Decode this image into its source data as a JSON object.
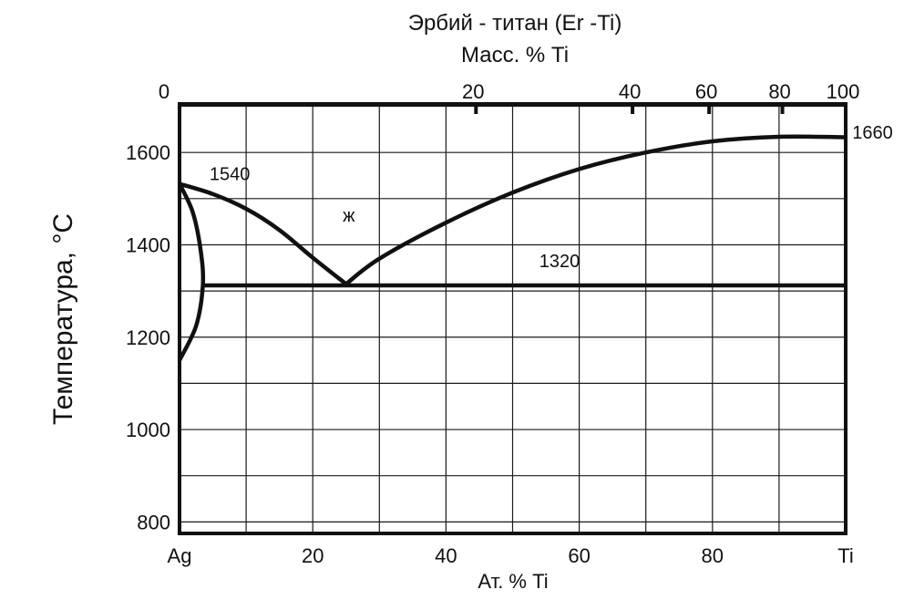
{
  "chart_data": {
    "type": "line",
    "title": "Эрбий - титан (Er -Ti)",
    "subtitle": "Масс. % Ti",
    "xlabel": "Ат. % Ti",
    "ylabel": "Температура,   °С",
    "xlim": [
      0,
      100
    ],
    "ylim": [
      775,
      1705
    ],
    "grid": true,
    "x_tick_labels": [
      {
        "value": 0,
        "label": "Ag"
      },
      {
        "value": 20,
        "label": "20"
      },
      {
        "value": 40,
        "label": "40"
      },
      {
        "value": 60,
        "label": "60"
      },
      {
        "value": 80,
        "label": "80"
      },
      {
        "value": 100,
        "label": "Ti"
      }
    ],
    "x_grid": [
      0,
      10,
      20,
      30,
      40,
      50,
      60,
      70,
      80,
      90,
      100
    ],
    "y_ticks": [
      800,
      1000,
      1200,
      1400,
      1600
    ],
    "y_grid": [
      800,
      900,
      1000,
      1100,
      1200,
      1300,
      1400,
      1500,
      1600,
      1700
    ],
    "top_axis": {
      "zero_label": "0",
      "ticks": [
        {
          "x": 44.5,
          "label": "20"
        },
        {
          "x": 68.0,
          "label": "40"
        },
        {
          "x": 79.5,
          "label": "60"
        },
        {
          "x": 90.5,
          "label": "80"
        },
        {
          "x": 100,
          "label": "100"
        }
      ]
    },
    "series": [
      {
        "points": [
          [
            0,
            1532
          ],
          [
            5,
            1510
          ],
          [
            10,
            1478
          ],
          [
            15,
            1432
          ],
          [
            20,
            1372
          ],
          [
            25,
            1315
          ]
        ]
      },
      {
        "points": [
          [
            25,
            1315
          ],
          [
            30,
            1370
          ],
          [
            40,
            1448
          ],
          [
            50,
            1513
          ],
          [
            60,
            1564
          ],
          [
            70,
            1600
          ],
          [
            80,
            1624
          ],
          [
            90,
            1634
          ],
          [
            100,
            1633
          ]
        ]
      },
      {
        "points": [
          [
            3.5,
            1312
          ],
          [
            100,
            1312
          ]
        ]
      },
      {
        "points": [
          [
            0,
            1532
          ],
          [
            2,
            1470
          ],
          [
            3.2,
            1385
          ],
          [
            3.5,
            1312
          ],
          [
            2.5,
            1225
          ],
          [
            0,
            1150
          ]
        ]
      }
    ],
    "annotations": [
      {
        "text": "1540",
        "x": 4.5,
        "y": 1540
      },
      {
        "text": "ж",
        "x": 24.5,
        "y": 1450
      },
      {
        "text": "1320",
        "x": 54,
        "y": 1352
      },
      {
        "text": "1660",
        "x": 101,
        "y": 1630
      }
    ]
  }
}
